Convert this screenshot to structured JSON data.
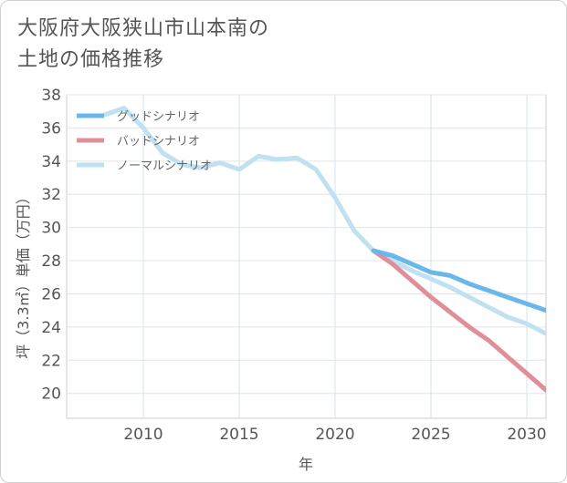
{
  "title_lines": [
    "大阪府大阪狭山市山本南の",
    "土地の価格推移"
  ],
  "chart_data": {
    "type": "line",
    "title": "大阪府大阪狭山市山本南の土地の価格推移",
    "xlabel": "年",
    "ylabel": "坪（3.3㎡）単価（万円）",
    "xlim": [
      2006,
      2031
    ],
    "ylim": [
      18.5,
      38
    ],
    "xticks": [
      2010,
      2015,
      2020,
      2025,
      2030
    ],
    "yticks": [
      20,
      22,
      24,
      26,
      28,
      30,
      32,
      34,
      36,
      38
    ],
    "grid": true,
    "legend_position": "top-left",
    "series": [
      {
        "name": "グッドシナリオ",
        "color": "#6ab7ec",
        "x": [
          2022,
          2023,
          2024,
          2025,
          2026,
          2027,
          2028,
          2029,
          2030,
          2031
        ],
        "y": [
          28.6,
          28.3,
          27.8,
          27.3,
          27.1,
          26.6,
          26.2,
          25.8,
          25.4,
          25.0
        ]
      },
      {
        "name": "バッドシナリオ",
        "color": "#e08f98",
        "x": [
          2022,
          2023,
          2024,
          2025,
          2026,
          2027,
          2028,
          2029,
          2030,
          2031
        ],
        "y": [
          28.6,
          27.8,
          26.8,
          25.8,
          24.9,
          24.0,
          23.2,
          22.2,
          21.2,
          20.2
        ]
      },
      {
        "name": "ノーマルシナリオ",
        "color": "#bfe1f2",
        "x": [
          2008,
          2009,
          2010,
          2011,
          2012,
          2013,
          2014,
          2015,
          2016,
          2017,
          2018,
          2019,
          2020,
          2021,
          2022,
          2023,
          2024,
          2025,
          2026,
          2027,
          2028,
          2029,
          2030,
          2031
        ],
        "y": [
          36.8,
          37.2,
          36.0,
          34.5,
          33.8,
          33.6,
          33.9,
          33.5,
          34.3,
          34.1,
          34.2,
          33.5,
          31.8,
          29.8,
          28.6,
          28.0,
          27.4,
          26.9,
          26.4,
          25.8,
          25.2,
          24.6,
          24.2,
          23.6
        ]
      }
    ]
  }
}
